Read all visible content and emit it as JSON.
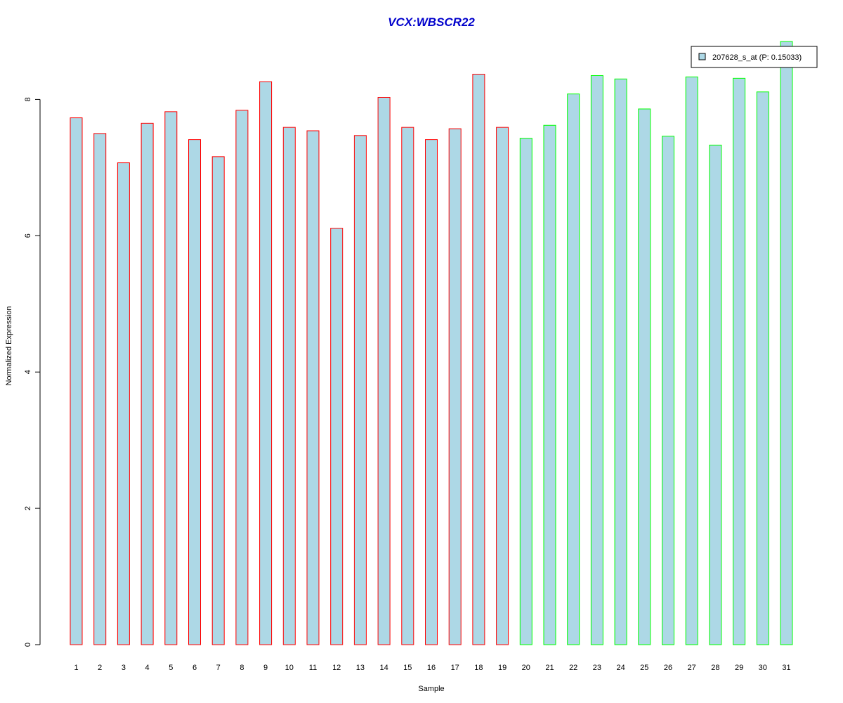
{
  "chart_data": {
    "type": "bar",
    "title": "VCX:WBSCR22",
    "xlabel": "Sample",
    "ylabel": "Normalized Expression",
    "ylim": [
      0,
      8.85
    ],
    "yticks": [
      "0",
      "2",
      "4",
      "6",
      "8"
    ],
    "categories": [
      "1",
      "2",
      "3",
      "4",
      "5",
      "6",
      "7",
      "8",
      "9",
      "10",
      "11",
      "12",
      "13",
      "14",
      "15",
      "16",
      "17",
      "18",
      "19",
      "20",
      "21",
      "22",
      "23",
      "24",
      "25",
      "26",
      "27",
      "28",
      "29",
      "30",
      "31"
    ],
    "values": [
      7.73,
      7.5,
      7.07,
      7.65,
      7.82,
      7.41,
      7.16,
      7.84,
      8.26,
      7.59,
      7.54,
      6.11,
      7.47,
      8.03,
      7.59,
      7.41,
      7.57,
      8.37,
      7.59,
      7.43,
      7.62,
      8.08,
      8.35,
      8.3,
      7.86,
      7.46,
      8.33,
      7.33,
      8.31,
      8.11,
      8.85
    ],
    "bar_fill": "#add8e6",
    "group_border_colors": [
      "#ff0000",
      "#ff0000",
      "#ff0000",
      "#ff0000",
      "#ff0000",
      "#ff0000",
      "#ff0000",
      "#ff0000",
      "#ff0000",
      "#ff0000",
      "#ff0000",
      "#ff0000",
      "#ff0000",
      "#ff0000",
      "#ff0000",
      "#ff0000",
      "#ff0000",
      "#ff0000",
      "#ff0000",
      "#00ff00",
      "#00ff00",
      "#00ff00",
      "#00ff00",
      "#00ff00",
      "#00ff00",
      "#00ff00",
      "#00ff00",
      "#00ff00",
      "#00ff00",
      "#00ff00",
      "#00ff00"
    ],
    "title_color": "#0000cc",
    "legend": {
      "label": "207628_s_at (P: 0.15033)",
      "position": "top-right"
    },
    "grid": false
  }
}
